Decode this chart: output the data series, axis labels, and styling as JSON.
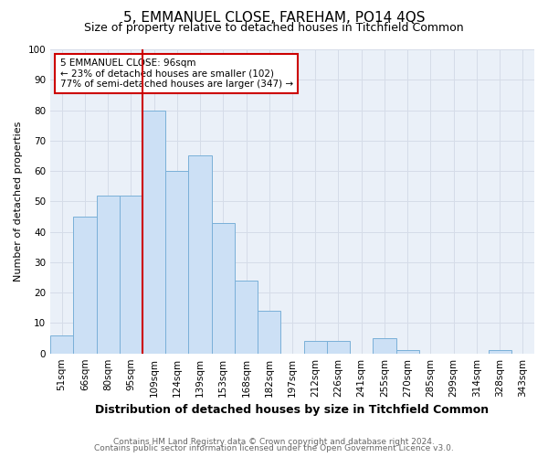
{
  "title": "5, EMMANUEL CLOSE, FAREHAM, PO14 4QS",
  "subtitle": "Size of property relative to detached houses in Titchfield Common",
  "xlabel": "Distribution of detached houses by size in Titchfield Common",
  "ylabel": "Number of detached properties",
  "footer_line1": "Contains HM Land Registry data © Crown copyright and database right 2024.",
  "footer_line2": "Contains public sector information licensed under the Open Government Licence v3.0.",
  "bar_labels": [
    "51sqm",
    "66sqm",
    "80sqm",
    "95sqm",
    "109sqm",
    "124sqm",
    "139sqm",
    "153sqm",
    "168sqm",
    "182sqm",
    "197sqm",
    "212sqm",
    "226sqm",
    "241sqm",
    "255sqm",
    "270sqm",
    "285sqm",
    "299sqm",
    "314sqm",
    "328sqm",
    "343sqm"
  ],
  "bar_values": [
    6,
    45,
    52,
    52,
    80,
    60,
    65,
    43,
    24,
    14,
    0,
    4,
    4,
    0,
    5,
    1,
    0,
    0,
    0,
    1,
    0
  ],
  "bar_color": "#cce0f5",
  "bar_edge_color": "#7ab0d8",
  "ylim": [
    0,
    100
  ],
  "yticks": [
    0,
    10,
    20,
    30,
    40,
    50,
    60,
    70,
    80,
    90,
    100
  ],
  "vline_x": 3.5,
  "vline_color": "#cc0000",
  "annotation_text": "5 EMMANUEL CLOSE: 96sqm\n← 23% of detached houses are smaller (102)\n77% of semi-detached houses are larger (347) →",
  "annotation_box_facecolor": "#ffffff",
  "annotation_box_edgecolor": "#cc0000",
  "grid_color": "#d5dce8",
  "background_color": "#eaf0f8",
  "plot_bg_color": "#eaf0f8",
  "title_fontsize": 11,
  "subtitle_fontsize": 9,
  "xlabel_fontsize": 9,
  "ylabel_fontsize": 8,
  "tick_fontsize": 7.5,
  "annot_fontsize": 7.5,
  "footer_fontsize": 6.5,
  "footer_color": "#666666"
}
